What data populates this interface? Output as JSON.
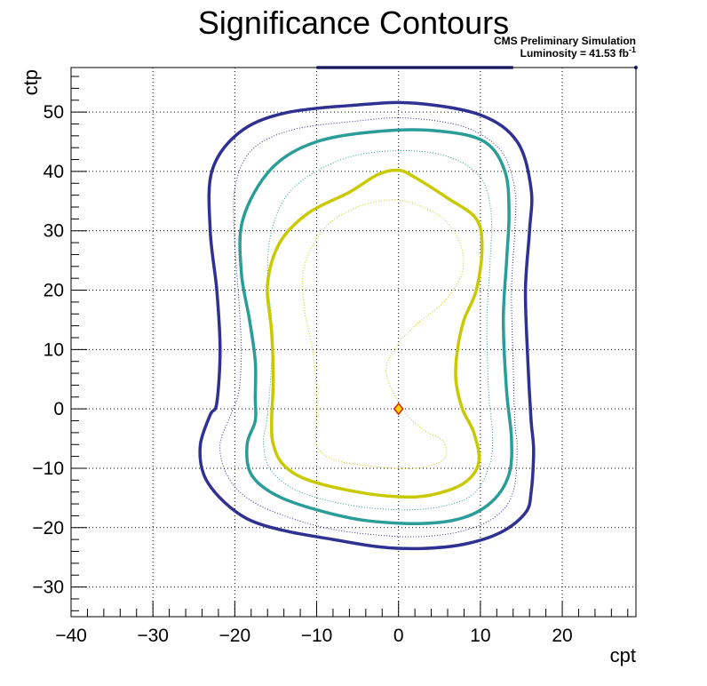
{
  "chart_data": {
    "type": "contour",
    "title": "Significance Contours",
    "annotation_line1": "CMS Preliminary Simulation",
    "annotation_line2_prefix": "Luminosity = 41.53 fb",
    "annotation_line2_superscript": "-1",
    "xlabel": "cpt",
    "ylabel": "ctp",
    "xlim": [
      -40,
      29
    ],
    "ylim": [
      -35,
      57.5
    ],
    "grid": true,
    "x_ticks": [
      {
        "value": -40,
        "label": "−40"
      },
      {
        "value": -30,
        "label": "−30"
      },
      {
        "value": -20,
        "label": "−20"
      },
      {
        "value": -10,
        "label": "−10"
      },
      {
        "value": 0,
        "label": "0"
      },
      {
        "value": 10,
        "label": "10"
      },
      {
        "value": 20,
        "label": "20"
      }
    ],
    "y_ticks": [
      {
        "value": -30,
        "label": "−30"
      },
      {
        "value": -20,
        "label": "−20"
      },
      {
        "value": -10,
        "label": "−10"
      },
      {
        "value": 0,
        "label": "0"
      },
      {
        "value": 10,
        "label": "10"
      },
      {
        "value": 20,
        "label": "20"
      },
      {
        "value": 30,
        "label": "30"
      },
      {
        "value": 40,
        "label": "40"
      },
      {
        "value": 50,
        "label": "50"
      }
    ],
    "best_fit_point": {
      "x": 0,
      "y": 0,
      "fill": "#ffd700",
      "stroke": "#dd2200"
    },
    "contours": [
      {
        "color": "#2e3192",
        "style": "solid",
        "points": [
          [
            -23.0,
            -1.0
          ],
          [
            -24.2,
            -6.0
          ],
          [
            -23.8,
            -11.0
          ],
          [
            -21.8,
            -15.0
          ],
          [
            -18.5,
            -18.5
          ],
          [
            -14.0,
            -20.5
          ],
          [
            -8.0,
            -22.0
          ],
          [
            -2.0,
            -23.3
          ],
          [
            3.0,
            -23.5
          ],
          [
            8.0,
            -22.8
          ],
          [
            12.5,
            -20.8
          ],
          [
            15.5,
            -17.5
          ],
          [
            16.2,
            -14.0
          ],
          [
            16.5,
            -7.0
          ],
          [
            16.2,
            -2.0
          ],
          [
            15.8,
            8.0
          ],
          [
            15.5,
            20.0
          ],
          [
            16.0,
            30.0
          ],
          [
            16.2,
            37.0
          ],
          [
            14.5,
            45.0
          ],
          [
            10.0,
            49.5
          ],
          [
            2.0,
            51.5
          ],
          [
            -5.0,
            51.2
          ],
          [
            -14.0,
            49.8
          ],
          [
            -19.5,
            46.5
          ],
          [
            -22.8,
            40.0
          ],
          [
            -23.0,
            30.0
          ],
          [
            -22.2,
            20.0
          ],
          [
            -21.8,
            10.0
          ],
          [
            -22.2,
            1.0
          ],
          [
            -23.0,
            -1.0
          ]
        ]
      },
      {
        "color": "#2e3192",
        "style": "dotted",
        "points": [
          [
            -20.5,
            -1.0
          ],
          [
            -21.8,
            -6.0
          ],
          [
            -21.0,
            -11.0
          ],
          [
            -18.5,
            -15.0
          ],
          [
            -14.0,
            -18.0
          ],
          [
            -8.0,
            -20.3
          ],
          [
            -2.0,
            -21.3
          ],
          [
            3.0,
            -21.5
          ],
          [
            8.0,
            -20.5
          ],
          [
            12.0,
            -18.0
          ],
          [
            14.0,
            -14.0
          ],
          [
            14.5,
            -7.0
          ],
          [
            14.2,
            -2.0
          ],
          [
            14.0,
            8.0
          ],
          [
            13.8,
            20.0
          ],
          [
            14.2,
            30.0
          ],
          [
            14.2,
            37.0
          ],
          [
            12.5,
            43.5
          ],
          [
            8.0,
            47.5
          ],
          [
            1.0,
            49.0
          ],
          [
            -5.0,
            48.5
          ],
          [
            -13.0,
            47.0
          ],
          [
            -18.0,
            43.5
          ],
          [
            -20.0,
            37.0
          ],
          [
            -20.0,
            28.0
          ],
          [
            -19.5,
            18.0
          ],
          [
            -19.2,
            10.0
          ],
          [
            -19.5,
            3.0
          ],
          [
            -20.5,
            -1.0
          ]
        ]
      },
      {
        "color": "#2a9d98",
        "style": "solid",
        "points": [
          [
            -17.5,
            -2.0
          ],
          [
            -18.5,
            -6.0
          ],
          [
            -18.0,
            -11.0
          ],
          [
            -15.0,
            -14.5
          ],
          [
            -10.0,
            -17.0
          ],
          [
            -4.0,
            -18.8
          ],
          [
            3.0,
            -19.3
          ],
          [
            8.0,
            -18.3
          ],
          [
            11.5,
            -15.5
          ],
          [
            13.5,
            -11.0
          ],
          [
            13.8,
            -5.0
          ],
          [
            13.2,
            3.0
          ],
          [
            12.8,
            15.0
          ],
          [
            13.2,
            25.0
          ],
          [
            13.5,
            33.0
          ],
          [
            13.0,
            40.0
          ],
          [
            10.5,
            45.0
          ],
          [
            5.0,
            46.8
          ],
          [
            -2.0,
            46.8
          ],
          [
            -10.0,
            45.0
          ],
          [
            -15.5,
            40.5
          ],
          [
            -19.0,
            32.0
          ],
          [
            -19.2,
            23.0
          ],
          [
            -18.2,
            15.0
          ],
          [
            -17.5,
            8.0
          ],
          [
            -17.5,
            2.0
          ],
          [
            -17.5,
            -2.0
          ]
        ]
      },
      {
        "color": "#2a9d98",
        "style": "dotted",
        "points": [
          [
            -16.0,
            -1.0
          ],
          [
            -16.5,
            -6.0
          ],
          [
            -15.5,
            -10.5
          ],
          [
            -12.0,
            -14.0
          ],
          [
            -6.0,
            -16.2
          ],
          [
            0.0,
            -17.0
          ],
          [
            5.0,
            -16.5
          ],
          [
            9.0,
            -14.5
          ],
          [
            11.0,
            -10.0
          ],
          [
            11.5,
            -5.0
          ],
          [
            11.0,
            3.0
          ],
          [
            10.8,
            15.0
          ],
          [
            11.2,
            25.0
          ],
          [
            11.3,
            33.0
          ],
          [
            10.0,
            39.0
          ],
          [
            6.0,
            42.5
          ],
          [
            0.0,
            43.5
          ],
          [
            -7.0,
            42.0
          ],
          [
            -13.0,
            37.0
          ],
          [
            -15.5,
            30.0
          ],
          [
            -16.0,
            22.0
          ],
          [
            -15.5,
            15.0
          ],
          [
            -15.5,
            8.0
          ],
          [
            -16.0,
            -1.0
          ]
        ]
      },
      {
        "color": "#c9c900",
        "style": "solid",
        "points": [
          [
            -15.5,
            -2.0
          ],
          [
            -15.3,
            -6.0
          ],
          [
            -14.0,
            -9.5
          ],
          [
            -11.0,
            -12.0
          ],
          [
            -5.0,
            -14.0
          ],
          [
            0.0,
            -14.8
          ],
          [
            4.0,
            -14.5
          ],
          [
            8.0,
            -12.5
          ],
          [
            9.8,
            -9.0
          ],
          [
            9.2,
            -4.0
          ],
          [
            7.8,
            0.0
          ],
          [
            7.0,
            5.0
          ],
          [
            7.2,
            10.0
          ],
          [
            8.0,
            15.0
          ],
          [
            9.5,
            20.0
          ],
          [
            10.2,
            27.0
          ],
          [
            9.5,
            32.0
          ],
          [
            6.0,
            35.5
          ],
          [
            2.0,
            39.0
          ],
          [
            0.0,
            40.2
          ],
          [
            -2.5,
            39.5
          ],
          [
            -6.0,
            36.5
          ],
          [
            -11.0,
            33.0
          ],
          [
            -14.5,
            28.0
          ],
          [
            -16.0,
            21.0
          ],
          [
            -15.5,
            13.0
          ],
          [
            -15.3,
            5.0
          ],
          [
            -15.5,
            -2.0
          ]
        ]
      },
      {
        "color": "#c9c900",
        "style": "dotted",
        "points": [
          [
            -10.0,
            -1.0
          ],
          [
            -10.0,
            -6.0
          ],
          [
            -8.0,
            -8.5
          ],
          [
            -3.0,
            -9.7
          ],
          [
            2.0,
            -10.0
          ],
          [
            5.5,
            -8.5
          ],
          [
            5.5,
            -5.5
          ],
          [
            3.0,
            -3.5
          ],
          [
            0.5,
            0.0
          ],
          [
            -1.5,
            6.0
          ],
          [
            -0.5,
            10.0
          ],
          [
            2.0,
            14.0
          ],
          [
            5.5,
            18.0
          ],
          [
            7.8,
            23.0
          ],
          [
            7.5,
            28.0
          ],
          [
            5.5,
            32.0
          ],
          [
            2.0,
            34.5
          ],
          [
            -1.0,
            35.2
          ],
          [
            -5.0,
            34.0
          ],
          [
            -9.0,
            30.5
          ],
          [
            -11.5,
            24.0
          ],
          [
            -11.5,
            17.0
          ],
          [
            -10.5,
            10.0
          ],
          [
            -10.0,
            3.0
          ],
          [
            -10.0,
            -1.0
          ]
        ]
      }
    ],
    "open_contour_top": {
      "color": "#2e3192",
      "style": "solid",
      "points": [
        [
          -10.0,
          57.5
        ],
        [
          14.0,
          57.5
        ]
      ]
    },
    "edge_marker": {
      "x": 29,
      "y": 57.5,
      "color": "#2e3192"
    }
  }
}
